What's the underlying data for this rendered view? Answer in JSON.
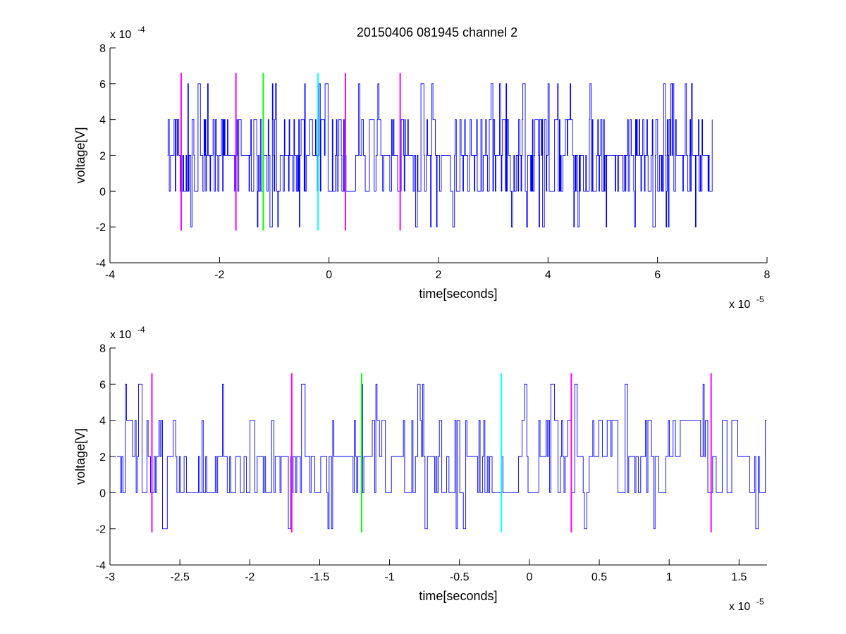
{
  "figure_title": "20150406 081945 channel 2",
  "colors": {
    "signal": "#0000ff",
    "marker_magenta": "#ff00ff",
    "marker_green": "#00ff00",
    "marker_cyan": "#00ffff",
    "axes": "#000000",
    "background": "#ffffff"
  },
  "chart_data": [
    {
      "type": "line",
      "title": "20150406 081945 channel 2",
      "xlabel": "time[seconds]",
      "ylabel": "voltage[V]",
      "x_multiplier": "x 10",
      "x_multiplier_exp": "-5",
      "y_multiplier": "x 10",
      "y_multiplier_exp": "-4",
      "xlim": [
        -4,
        8
      ],
      "ylim": [
        -4,
        8
      ],
      "xticks": [
        -4,
        -2,
        0,
        2,
        4,
        6,
        8
      ],
      "xtick_labels": [
        "-4",
        "-2",
        "0",
        "2",
        "4",
        "6",
        "8"
      ],
      "yticks": [
        -4,
        -2,
        0,
        2,
        4,
        6,
        8
      ],
      "ytick_labels": [
        "-4",
        "-2",
        "0",
        "2",
        "4",
        "6",
        "8"
      ],
      "grid": false,
      "signal_x_range": [
        -2.95,
        7.0
      ],
      "signal_levels": [
        -2,
        0,
        2,
        4,
        6
      ],
      "markers": [
        {
          "x": -2.7,
          "y_range": [
            -2.2,
            6.6
          ],
          "color": "magenta"
        },
        {
          "x": -1.7,
          "y_range": [
            -2.2,
            6.6
          ],
          "color": "magenta"
        },
        {
          "x": -1.2,
          "y_range": [
            -2.2,
            6.6
          ],
          "color": "green"
        },
        {
          "x": -0.2,
          "y_range": [
            -2.2,
            6.6
          ],
          "color": "cyan"
        },
        {
          "x": 0.3,
          "y_range": [
            -2.2,
            6.6
          ],
          "color": "magenta"
        },
        {
          "x": 1.3,
          "y_range": [
            -2.2,
            6.6
          ],
          "color": "magenta"
        }
      ]
    },
    {
      "type": "line",
      "title": "",
      "xlabel": "time[seconds]",
      "ylabel": "voltage[V]",
      "x_multiplier": "x 10",
      "x_multiplier_exp": "-5",
      "y_multiplier": "x 10",
      "y_multiplier_exp": "-4",
      "xlim": [
        -3.0,
        1.7
      ],
      "ylim": [
        -4,
        8
      ],
      "xticks": [
        -3,
        -2.5,
        -2,
        -1.5,
        -1,
        -0.5,
        0,
        0.5,
        1,
        1.5
      ],
      "xtick_labels": [
        "-3",
        "-2.5",
        "-2",
        "-1.5",
        "-1",
        "-0.5",
        "0",
        "0.5",
        "1",
        "1.5"
      ],
      "yticks": [
        -4,
        -2,
        0,
        2,
        4,
        6,
        8
      ],
      "ytick_labels": [
        "-4",
        "-2",
        "0",
        "2",
        "4",
        "6",
        "8"
      ],
      "grid": false,
      "signal_x_range": [
        -2.95,
        1.7
      ],
      "signal_levels": [
        -2,
        0,
        2,
        4,
        6
      ],
      "markers": [
        {
          "x": -2.7,
          "y_range": [
            -2.2,
            6.6
          ],
          "color": "magenta"
        },
        {
          "x": -1.7,
          "y_range": [
            -2.2,
            6.6
          ],
          "color": "magenta"
        },
        {
          "x": -1.2,
          "y_range": [
            -2.2,
            6.6
          ],
          "color": "green"
        },
        {
          "x": -0.2,
          "y_range": [
            -2.2,
            6.6
          ],
          "color": "cyan"
        },
        {
          "x": 0.3,
          "y_range": [
            -2.2,
            6.6
          ],
          "color": "magenta"
        },
        {
          "x": 1.3,
          "y_range": [
            -2.2,
            6.6
          ],
          "color": "magenta"
        }
      ]
    }
  ]
}
